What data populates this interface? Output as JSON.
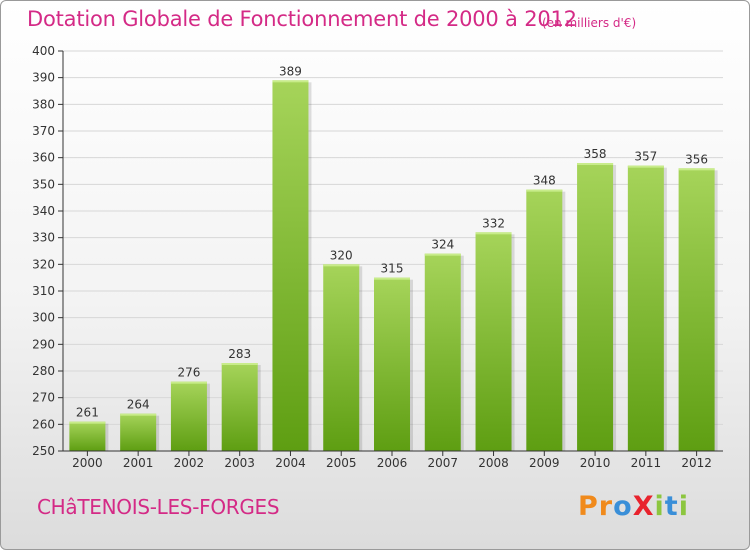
{
  "header": {
    "title": "Dotation Globale de Fonctionnement de 2000 à 2012",
    "unit": "(en milliers d'€)"
  },
  "footer": {
    "commune": "CHâTENOIS-LES-FORGES",
    "logo": {
      "text": "ProXiti",
      "letters": [
        {
          "ch": "P",
          "color": "#f08a1c"
        },
        {
          "ch": "r",
          "color": "#f08a1c"
        },
        {
          "ch": "o",
          "color": "#3a8fd8"
        },
        {
          "ch": "X",
          "color": "#e8232d"
        },
        {
          "ch": "i",
          "color": "#8cc63f"
        },
        {
          "ch": "t",
          "color": "#3a8fd8"
        },
        {
          "ch": "i",
          "color": "#8cc63f"
        }
      ]
    }
  },
  "chart_data": {
    "type": "bar",
    "title": "Dotation Globale de Fonctionnement de 2000 à 2012",
    "subtitle": "(en milliers d'€)",
    "categories": [
      "2000",
      "2001",
      "2002",
      "2003",
      "2004",
      "2005",
      "2006",
      "2007",
      "2008",
      "2009",
      "2010",
      "2011",
      "2012"
    ],
    "values": [
      261,
      264,
      276,
      283,
      389,
      320,
      315,
      324,
      332,
      348,
      358,
      357,
      356
    ],
    "data_labels": [
      "261",
      "264",
      "276",
      "283",
      "389",
      "320",
      "315",
      "324",
      "332",
      "348",
      "358",
      "357",
      "356"
    ],
    "ylim": [
      250,
      400
    ],
    "yticks": [
      250,
      260,
      270,
      280,
      290,
      300,
      310,
      320,
      330,
      340,
      350,
      360,
      370,
      380,
      390,
      400
    ],
    "grid": true,
    "legend": "none",
    "colors": {
      "bar_light": "#a6d45a",
      "bar_dark": "#5e9e12",
      "title": "#d42a86",
      "axis": "#333333",
      "grid": "#d7d7d7"
    }
  }
}
